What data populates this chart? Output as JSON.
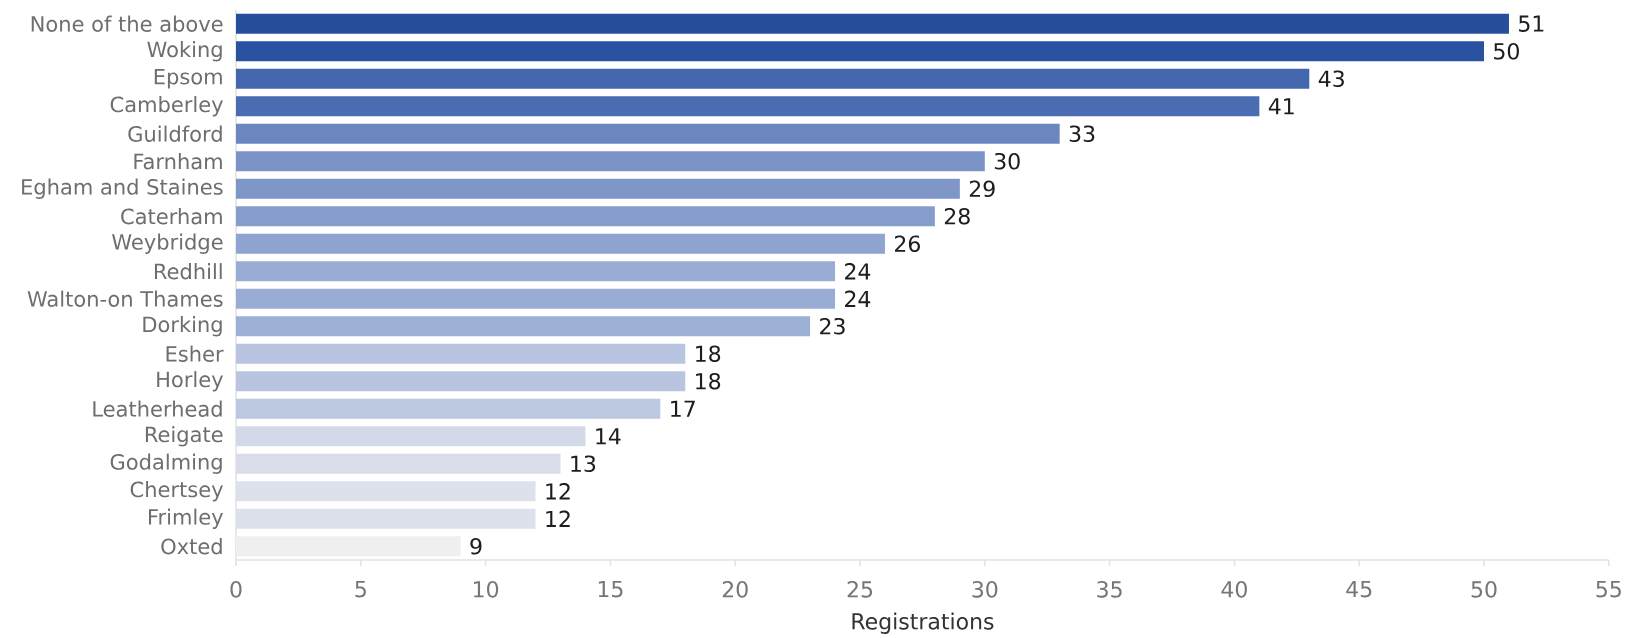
{
  "chart_data": {
    "type": "bar",
    "orientation": "horizontal",
    "xlabel": "Registrations",
    "categories": [
      "None of the above",
      "Woking",
      "Epsom",
      "Camberley",
      "Guildford",
      "Farnham",
      "Egham and Staines",
      "Caterham",
      "Weybridge",
      "Redhill",
      "Walton-on Thames",
      "Dorking",
      "Esher",
      "Horley",
      "Leatherhead",
      "Reigate",
      "Godalming",
      "Chertsey",
      "Frimley",
      "Oxted"
    ],
    "values": [
      51,
      50,
      43,
      41,
      33,
      30,
      29,
      28,
      26,
      24,
      24,
      23,
      18,
      18,
      17,
      14,
      13,
      12,
      12,
      9
    ],
    "colors": [
      "#264e9c",
      "#2a52a0",
      "#4466ae",
      "#4a6cb2",
      "#6c87c0",
      "#7c93c8",
      "#7f96c9",
      "#869dcc",
      "#8fa4d0",
      "#99acd4",
      "#99acd4",
      "#9db0d6",
      "#b9c5e0",
      "#b9c5e0",
      "#bdc8e1",
      "#d3d9e8",
      "#d9dde9",
      "#dde1eb",
      "#dde1eb",
      "#efefef"
    ],
    "xlim": [
      0,
      55
    ],
    "xticks": [
      0,
      5,
      10,
      15,
      20,
      25,
      30,
      35,
      40,
      45,
      50,
      55
    ],
    "data_labels": true
  }
}
